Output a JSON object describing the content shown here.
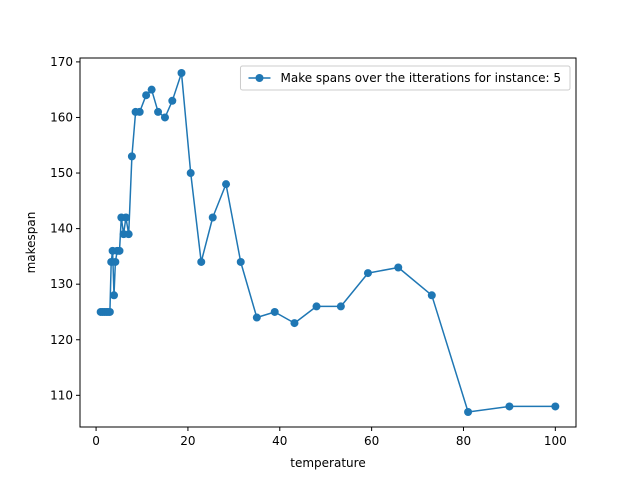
{
  "chart_data": {
    "type": "line",
    "title": "",
    "xlabel": "temperature",
    "ylabel": "makespan",
    "xlim": [
      -3.5,
      104.5
    ],
    "ylim": [
      104.3,
      170.7
    ],
    "xticks": [
      0,
      20,
      40,
      60,
      80,
      100
    ],
    "yticks": [
      110,
      120,
      130,
      140,
      150,
      160,
      170
    ],
    "grid": false,
    "legend_position": "upper-right",
    "series": [
      {
        "name": "Make spans over the itterations for instance: 5",
        "color": "#1f77b4",
        "marker": "circle",
        "points": [
          [
            1.0,
            125
          ],
          [
            1.4,
            125
          ],
          [
            1.8,
            125
          ],
          [
            2.2,
            125
          ],
          [
            2.6,
            125
          ],
          [
            3.0,
            125
          ],
          [
            3.3,
            134
          ],
          [
            3.6,
            136
          ],
          [
            3.9,
            128
          ],
          [
            4.2,
            134
          ],
          [
            4.6,
            136
          ],
          [
            5.1,
            136
          ],
          [
            5.5,
            142
          ],
          [
            6.0,
            139
          ],
          [
            6.5,
            142
          ],
          [
            7.1,
            139
          ],
          [
            7.8,
            153
          ],
          [
            8.6,
            161
          ],
          [
            9.5,
            161
          ],
          [
            10.9,
            164
          ],
          [
            12.1,
            165
          ],
          [
            13.5,
            161
          ],
          [
            15.0,
            160
          ],
          [
            16.6,
            163
          ],
          [
            18.6,
            168
          ],
          [
            20.6,
            150
          ],
          [
            22.9,
            134
          ],
          [
            25.4,
            142
          ],
          [
            28.3,
            148
          ],
          [
            31.5,
            134
          ],
          [
            35.0,
            124
          ],
          [
            38.9,
            125
          ],
          [
            43.2,
            123
          ],
          [
            48.0,
            126
          ],
          [
            53.3,
            126
          ],
          [
            59.2,
            132
          ],
          [
            65.8,
            133
          ],
          [
            73.1,
            128
          ],
          [
            81.0,
            107
          ],
          [
            90.0,
            108
          ],
          [
            100.0,
            108
          ]
        ]
      }
    ]
  }
}
